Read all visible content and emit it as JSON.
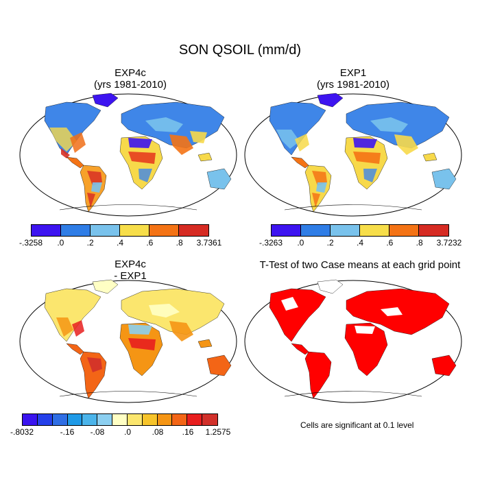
{
  "title": "SON QSOIL (mm/d)",
  "panels": {
    "p1": {
      "title_line1": "EXP4c",
      "title_line2": "(yrs 1981-2010)"
    },
    "p2": {
      "title_line1": "EXP1",
      "title_line2": "(yrs 1981-2010)"
    },
    "p3": {
      "title_line1": "EXP4c",
      "title_line2": "- EXP1"
    },
    "p4": {
      "title_line1": "T-Test of two Case means at each grid point"
    }
  },
  "colorbars": {
    "cb1": {
      "colors": [
        "#3d14f0",
        "#2f7de6",
        "#79c2ec",
        "#f7de4a",
        "#f47315",
        "#d62b23"
      ],
      "labels": [
        "-.3258",
        ".0",
        ".2",
        ".4",
        ".6",
        ".8",
        "3.7361"
      ]
    },
    "cb2": {
      "colors": [
        "#3d14f0",
        "#2f7de6",
        "#79c2ec",
        "#f7de4a",
        "#f47315",
        "#d62b23"
      ],
      "labels": [
        "-.3263",
        ".0",
        ".2",
        ".4",
        ".6",
        ".8",
        "3.7232"
      ]
    },
    "cb3": {
      "colors": [
        "#3a14ef",
        "#2540ea",
        "#2f6ee4",
        "#1f9ae7",
        "#4bb4ea",
        "#8ccff0",
        "#ffffc4",
        "#fbe66e",
        "#f7c42a",
        "#f59514",
        "#f36516",
        "#e81e1e",
        "#d1302a"
      ],
      "labels": [
        "-.8032",
        "-.16",
        "-.08",
        ".0",
        ".08",
        ".16",
        "1.2575"
      ]
    }
  },
  "significance_note": "Cells are significant at 0.1 level"
}
